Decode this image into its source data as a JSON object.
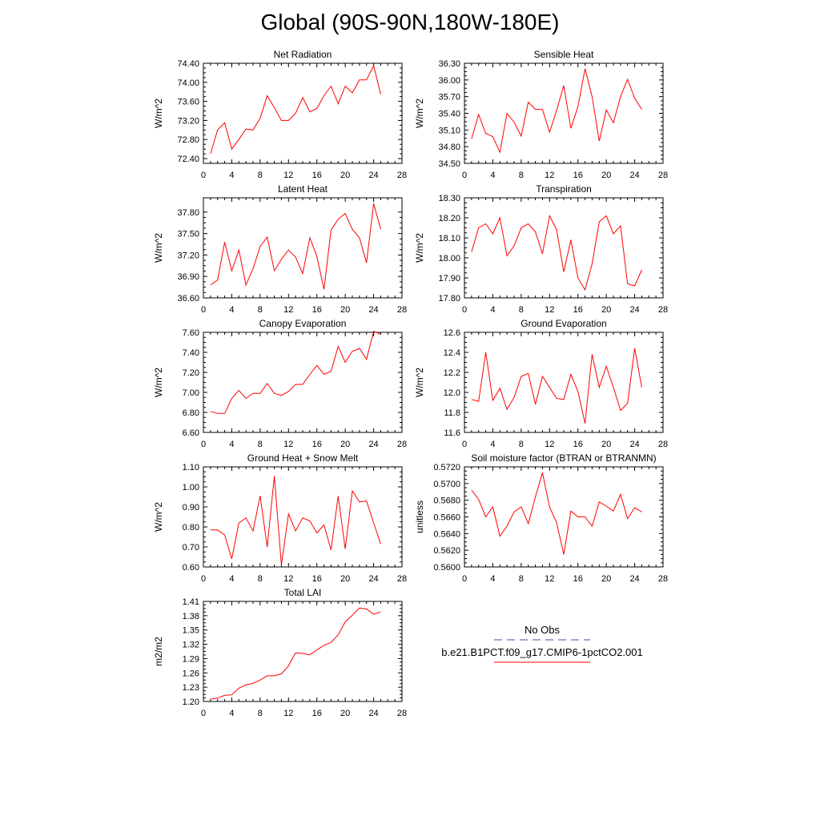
{
  "title": "Global (90S-90N,180W-180E)",
  "line_color": "#ff0000",
  "obs_color": "#4a4aa0",
  "legend": {
    "obs_label": "No Obs",
    "model_label": "b.e21.B1PCT.f09_g17.CMIP6-1pctCO2.001"
  },
  "chart_data": [
    {
      "type": "line",
      "title": "Net Radiation",
      "xlabel": "",
      "ylabel": "W/m^2",
      "xlim": [
        0,
        28
      ],
      "ylim": [
        72.3,
        74.4
      ],
      "xticks": [
        0,
        4,
        8,
        12,
        16,
        20,
        24,
        28
      ],
      "yticks": [
        "72.40",
        "72.80",
        "73.20",
        "73.60",
        "74.00",
        "74.40"
      ],
      "series": [
        {
          "values": [
            72.5,
            73.0,
            73.15,
            72.6,
            72.8,
            73.02,
            73.0,
            73.25,
            73.72,
            73.47,
            73.2,
            73.2,
            73.35,
            73.68,
            73.38,
            73.45,
            73.72,
            73.92,
            73.55,
            73.92,
            73.78,
            74.05,
            74.05,
            74.35,
            73.75
          ]
        }
      ]
    },
    {
      "type": "line",
      "title": "Sensible Heat",
      "xlabel": "",
      "ylabel": "W/m^2",
      "xlim": [
        0,
        28
      ],
      "ylim": [
        34.5,
        36.3
      ],
      "xticks": [
        0,
        4,
        8,
        12,
        16,
        20,
        24,
        28
      ],
      "yticks": [
        "34.50",
        "34.80",
        "35.10",
        "35.40",
        "35.70",
        "36.00",
        "36.30"
      ],
      "series": [
        {
          "values": [
            34.94,
            35.38,
            35.04,
            34.98,
            34.7,
            35.4,
            35.24,
            34.99,
            35.6,
            35.47,
            35.47,
            35.06,
            35.45,
            35.9,
            35.13,
            35.52,
            36.2,
            35.7,
            34.9,
            35.46,
            35.23,
            35.7,
            36.01,
            35.67,
            35.47
          ]
        }
      ]
    },
    {
      "type": "line",
      "title": "Latent Heat",
      "xlabel": "",
      "ylabel": "W/m^2",
      "xlim": [
        0,
        28
      ],
      "ylim": [
        36.6,
        38.0
      ],
      "xticks": [
        0,
        4,
        8,
        12,
        16,
        20,
        24,
        28
      ],
      "yticks": [
        "36.60",
        "36.90",
        "37.20",
        "37.50",
        "37.80"
      ],
      "series": [
        {
          "values": [
            36.78,
            36.85,
            37.38,
            36.98,
            37.27,
            36.78,
            37.01,
            37.32,
            37.45,
            36.98,
            37.14,
            37.27,
            37.17,
            36.94,
            37.44,
            37.18,
            36.72,
            37.55,
            37.7,
            37.78,
            37.56,
            37.44,
            37.09,
            37.92,
            37.56
          ]
        }
      ]
    },
    {
      "type": "line",
      "title": "Transpiration",
      "xlabel": "",
      "ylabel": "W/m^2",
      "xlim": [
        0,
        28
      ],
      "ylim": [
        17.8,
        18.3
      ],
      "xticks": [
        0,
        4,
        8,
        12,
        16,
        20,
        24,
        28
      ],
      "yticks": [
        "17.80",
        "17.90",
        "18.00",
        "18.10",
        "18.20",
        "18.30"
      ],
      "series": [
        {
          "values": [
            18.03,
            18.15,
            18.17,
            18.12,
            18.2,
            18.01,
            18.06,
            18.15,
            18.17,
            18.13,
            18.02,
            18.21,
            18.14,
            17.93,
            18.09,
            17.9,
            17.84,
            17.97,
            18.18,
            18.21,
            18.12,
            18.16,
            17.87,
            17.86,
            17.94
          ]
        }
      ]
    },
    {
      "type": "line",
      "title": "Canopy Evaporation",
      "xlabel": "",
      "ylabel": "W/m^2",
      "xlim": [
        0,
        28
      ],
      "ylim": [
        6.6,
        7.6
      ],
      "xticks": [
        0,
        4,
        8,
        12,
        16,
        20,
        24,
        28
      ],
      "yticks": [
        "6.60",
        "6.80",
        "7.00",
        "7.20",
        "7.40",
        "7.60"
      ],
      "series": [
        {
          "values": [
            6.81,
            6.79,
            6.79,
            6.94,
            7.02,
            6.94,
            6.99,
            6.99,
            7.09,
            6.99,
            6.97,
            7.01,
            7.08,
            7.08,
            7.18,
            7.27,
            7.18,
            7.21,
            7.46,
            7.3,
            7.41,
            7.44,
            7.33,
            7.61,
            7.58
          ]
        }
      ]
    },
    {
      "type": "line",
      "title": "Ground Evaporation",
      "xlabel": "",
      "ylabel": "W/m^2",
      "xlim": [
        0,
        28
      ],
      "ylim": [
        11.6,
        12.6
      ],
      "xticks": [
        0,
        4,
        8,
        12,
        16,
        20,
        24,
        28
      ],
      "yticks": [
        "11.6",
        "11.8",
        "12.0",
        "12.2",
        "12.4",
        "12.6"
      ],
      "series": [
        {
          "values": [
            11.93,
            11.91,
            12.4,
            11.92,
            12.04,
            11.83,
            11.95,
            12.16,
            12.19,
            11.88,
            12.16,
            12.05,
            11.94,
            11.93,
            12.18,
            12.01,
            11.69,
            12.38,
            12.05,
            12.26,
            12.05,
            11.82,
            11.89,
            12.44,
            12.05
          ]
        }
      ]
    },
    {
      "type": "line",
      "title": "Ground Heat + Snow Melt",
      "xlabel": "",
      "ylabel": "W/m^2",
      "xlim": [
        0,
        28
      ],
      "ylim": [
        0.6,
        1.1
      ],
      "xticks": [
        0,
        4,
        8,
        12,
        16,
        20,
        24,
        28
      ],
      "yticks": [
        "0.60",
        "0.70",
        "0.80",
        "0.90",
        "1.00",
        "1.10"
      ],
      "series": [
        {
          "values": [
            0.785,
            0.785,
            0.76,
            0.64,
            0.82,
            0.845,
            0.78,
            0.955,
            0.7,
            1.055,
            0.61,
            0.865,
            0.78,
            0.845,
            0.83,
            0.77,
            0.81,
            0.685,
            0.955,
            0.69,
            0.98,
            0.925,
            0.93,
            0.82,
            0.715
          ]
        }
      ]
    },
    {
      "type": "line",
      "title": "Soil moisture factor (BTRAN or BTRANMN)",
      "xlabel": "",
      "ylabel": "unitless",
      "xlim": [
        0,
        28
      ],
      "ylim": [
        0.56,
        0.572
      ],
      "xticks": [
        0,
        4,
        8,
        12,
        16,
        20,
        24,
        28
      ],
      "yticks": [
        "0.5600",
        "0.5620",
        "0.5640",
        "0.5660",
        "0.5680",
        "0.5700",
        "0.5720"
      ],
      "series": [
        {
          "values": [
            0.5692,
            0.5681,
            0.566,
            0.5672,
            0.5637,
            0.5649,
            0.5666,
            0.5672,
            0.5652,
            0.5684,
            0.5713,
            0.5672,
            0.5653,
            0.5615,
            0.5667,
            0.566,
            0.566,
            0.5649,
            0.5678,
            0.5673,
            0.5667,
            0.5687,
            0.5658,
            0.5671,
            0.5666
          ]
        }
      ]
    },
    {
      "type": "line",
      "title": "Total LAI",
      "xlabel": "",
      "ylabel": "m2/m2",
      "xlim": [
        0,
        28
      ],
      "ylim": [
        1.2,
        1.41
      ],
      "xticks": [
        0,
        4,
        8,
        12,
        16,
        20,
        24,
        28
      ],
      "yticks": [
        "1.20",
        "1.23",
        "1.26",
        "1.29",
        "1.32",
        "1.35",
        "1.38",
        "1.41"
      ],
      "series": [
        {
          "values": [
            1.205,
            1.207,
            1.213,
            1.214,
            1.228,
            1.235,
            1.238,
            1.245,
            1.254,
            1.254,
            1.258,
            1.275,
            1.302,
            1.301,
            1.298,
            1.308,
            1.318,
            1.324,
            1.34,
            1.367,
            1.381,
            1.396,
            1.394,
            1.383,
            1.388
          ]
        }
      ]
    }
  ]
}
